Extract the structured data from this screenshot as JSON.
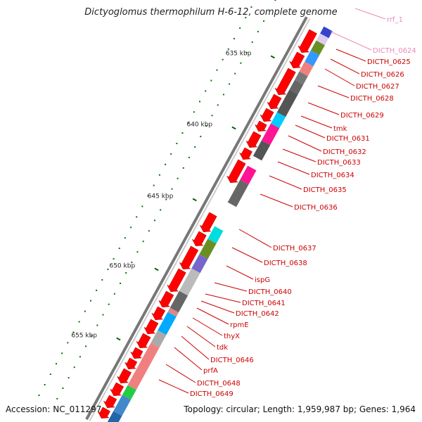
{
  "title": "Dictyoglomus thermophilum H-6-12, complete genome",
  "footer": {
    "accession": "Accession: NC_011297",
    "summary": "Topology: circular; Length: 1,959,987 bp; Genes: 1,964"
  },
  "tick_labels": [
    "635 kbp",
    "640 kbp",
    "645 kbp",
    "650 kbp",
    "655 kbp"
  ],
  "colors": {
    "cds_forward": "#ff0000",
    "label_red": "#cc0000",
    "label_pink": "#ee88bb",
    "backbone": "#888888",
    "gc_dots": "#007700"
  },
  "gene_labels": [
    {
      "text": "rrf_1",
      "color": "pink"
    },
    {
      "text": "DICTH_0624",
      "color": "pink"
    },
    {
      "text": "DICTH_0625",
      "color": "red"
    },
    {
      "text": "DICTH_0626",
      "color": "red"
    },
    {
      "text": "DICTH_0627",
      "color": "red"
    },
    {
      "text": "DICTH_0628",
      "color": "red"
    },
    {
      "text": "DICTH_0629",
      "color": "red"
    },
    {
      "text": "tmk",
      "color": "red"
    },
    {
      "text": "DICTH_0631",
      "color": "red"
    },
    {
      "text": "DICTH_0632",
      "color": "red"
    },
    {
      "text": "DICTH_0633",
      "color": "red"
    },
    {
      "text": "DICTH_0634",
      "color": "red"
    },
    {
      "text": "DICTH_0635",
      "color": "red"
    },
    {
      "text": "DICTH_0636",
      "color": "red"
    },
    {
      "text": "DICTH_0637",
      "color": "red"
    },
    {
      "text": "DICTH_0638",
      "color": "red"
    },
    {
      "text": "ispG",
      "color": "red"
    },
    {
      "text": "DICTH_0640",
      "color": "red"
    },
    {
      "text": "DICTH_0641",
      "color": "red"
    },
    {
      "text": "DICTH_0642",
      "color": "red"
    },
    {
      "text": "rpmE",
      "color": "red"
    },
    {
      "text": "thyX",
      "color": "red"
    },
    {
      "text": "tdk",
      "color": "red"
    },
    {
      "text": "DICTH_0646",
      "color": "red"
    },
    {
      "text": "prfA",
      "color": "red"
    },
    {
      "text": "DICTH_0648",
      "color": "red"
    },
    {
      "text": "DICTH_0649",
      "color": "red"
    }
  ],
  "cog_blocks": [
    {
      "color": "#3344cc"
    },
    {
      "color": "#ddccee"
    },
    {
      "color": "#6b8e23"
    },
    {
      "color": "#3399ff"
    },
    {
      "color": "#f08080"
    },
    {
      "color": "#777777"
    },
    {
      "color": "#666666"
    },
    {
      "color": "#555555"
    },
    {
      "color": "#00ccff"
    },
    {
      "color": "#ff1493"
    },
    {
      "color": "#555555"
    },
    {
      "color": "#ff1493"
    },
    {
      "color": "#666666"
    },
    {
      "color": "#00dddd"
    },
    {
      "color": "#6b8e23"
    },
    {
      "color": "#7766cc"
    },
    {
      "color": "#bbbbbb"
    },
    {
      "color": "#666666"
    },
    {
      "color": "#dd8888"
    },
    {
      "color": "#00aaff"
    },
    {
      "color": "#aaaaaa"
    },
    {
      "color": "#f08080"
    },
    {
      "color": "#22cc44"
    },
    {
      "color": "#4488cc"
    },
    {
      "color": "#2266aa"
    },
    {
      "color": "#6b8e23"
    }
  ]
}
